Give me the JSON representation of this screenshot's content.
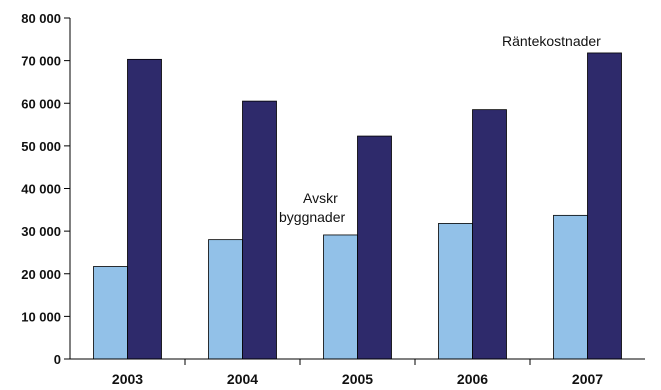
{
  "chart_data": {
    "type": "bar",
    "categories": [
      "2003",
      "2004",
      "2005",
      "2006",
      "2007"
    ],
    "series": [
      {
        "name": "Avskr byggnader",
        "values": [
          21700,
          28000,
          29100,
          31800,
          33700
        ],
        "color": "#92c1e8"
      },
      {
        "name": "Räntekostnader",
        "values": [
          70300,
          60500,
          52300,
          58500,
          71800
        ],
        "color": "#2e2a6b"
      }
    ],
    "ylim": [
      0,
      80000
    ],
    "yticks": [
      0,
      10000,
      20000,
      30000,
      40000,
      50000,
      60000,
      70000,
      80000
    ],
    "ytick_labels": [
      "0",
      "10 000",
      "20 000",
      "30 000",
      "40 000",
      "50 000",
      "60 000",
      "70 000",
      "80 000"
    ],
    "annotations": {
      "avskr_line1": "Avskr",
      "avskr_line2": "byggnader",
      "rantekostnader": "Räntekostnader"
    },
    "grid": false,
    "legend": "none"
  }
}
